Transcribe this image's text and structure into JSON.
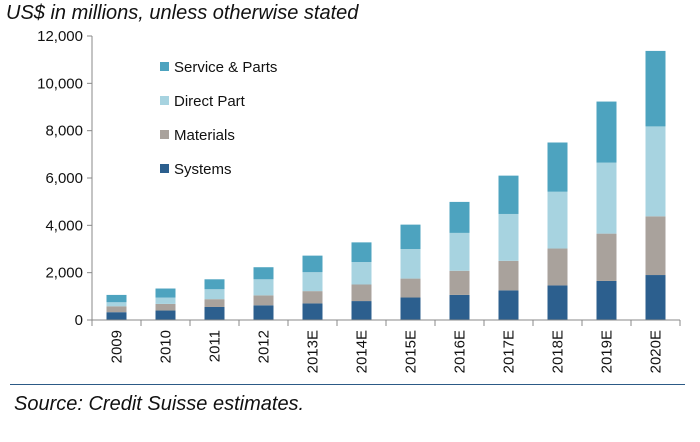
{
  "subtitle": "US$ in millions, unless otherwise stated",
  "source": "Source: Credit Suisse estimates.",
  "chart_data": {
    "type": "bar",
    "stacked": true,
    "categories": [
      "2009",
      "2010",
      "2011",
      "2012",
      "2013E",
      "2014E",
      "2015E",
      "2016E",
      "2017E",
      "2018E",
      "2019E",
      "2020E"
    ],
    "series": [
      {
        "name": "Systems",
        "color": "#2c5f8e",
        "values": [
          330,
          400,
          550,
          620,
          700,
          800,
          950,
          1060,
          1250,
          1460,
          1650,
          1900
        ]
      },
      {
        "name": "Materials",
        "color": "#a9a29c",
        "values": [
          250,
          280,
          330,
          420,
          520,
          700,
          800,
          1020,
          1250,
          1560,
          2000,
          2480
        ]
      },
      {
        "name": "Direct Part",
        "color": "#a7d3e0",
        "values": [
          170,
          270,
          420,
          680,
          800,
          950,
          1250,
          1600,
          1980,
          2400,
          3000,
          3800
        ]
      },
      {
        "name": "Service & Parts",
        "color": "#4da3bf",
        "values": [
          310,
          380,
          420,
          510,
          700,
          830,
          1030,
          1310,
          1620,
          2080,
          2580,
          3190
        ]
      }
    ],
    "legend_order": [
      "Service & Parts",
      "Direct Part",
      "Materials",
      "Systems"
    ],
    "ylim": [
      0,
      12000
    ],
    "yticks": [
      0,
      2000,
      4000,
      6000,
      8000,
      10000,
      12000
    ],
    "ytick_labels": [
      "0",
      "2,000",
      "4,000",
      "6,000",
      "8,000",
      "10,000",
      "12,000"
    ],
    "legend_position": "upper-left",
    "grid": false
  }
}
